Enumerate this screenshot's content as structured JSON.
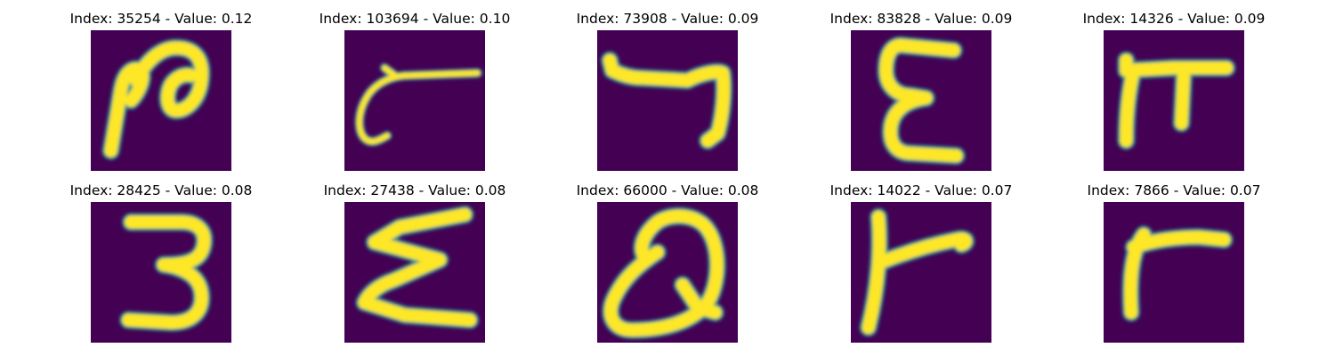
{
  "figure": {
    "background_color": "#ffffff",
    "image_background_color": "#440154",
    "image_mid_color": "#21918c",
    "image_stroke_color": "#fde725"
  },
  "panels": [
    {
      "title": "Index: 35254 - Value: 0.12",
      "glyph": "sample-35254-icon"
    },
    {
      "title": "Index: 103694 - Value: 0.10",
      "glyph": "sample-103694-icon"
    },
    {
      "title": "Index: 73908 - Value: 0.09",
      "glyph": "sample-73908-icon"
    },
    {
      "title": "Index: 83828 - Value: 0.09",
      "glyph": "sample-83828-icon"
    },
    {
      "title": "Index: 14326 - Value: 0.09",
      "glyph": "sample-14326-icon"
    },
    {
      "title": "Index: 28425 - Value: 0.08",
      "glyph": "sample-28425-icon"
    },
    {
      "title": "Index: 27438 - Value: 0.08",
      "glyph": "sample-27438-icon"
    },
    {
      "title": "Index: 66000 - Value: 0.08",
      "glyph": "sample-66000-icon"
    },
    {
      "title": "Index: 14022 - Value: 0.07",
      "glyph": "sample-14022-icon"
    },
    {
      "title": "Index: 7866 - Value: 0.07",
      "glyph": "sample-7866-icon"
    }
  ]
}
